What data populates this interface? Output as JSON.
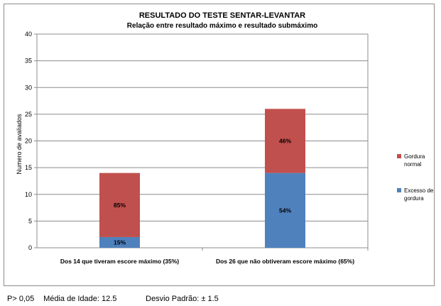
{
  "chart_data": {
    "type": "bar",
    "stacked": true,
    "title": "RESULTADO DO TESTE SENTAR-LEVANTAR",
    "subtitle": "Relação entre resultado máximo e resultado submáximo",
    "xlabel": "",
    "ylabel": "Numero de avaliados",
    "ylim": [
      0,
      40
    ],
    "yticks": [
      "0",
      "5",
      "10",
      "15",
      "20",
      "25",
      "30",
      "35",
      "40"
    ],
    "grid": true,
    "legend_position": "right",
    "categories": [
      "Dos 14 que tiveram escore máximo (35%)",
      "Dos 26 que não obtiveram escore máximo (65%)"
    ],
    "series": [
      {
        "name": "Excesso de gordura",
        "color": "#4f81bd",
        "values": [
          2,
          14
        ],
        "labels": [
          "15%",
          "54%"
        ]
      },
      {
        "name": "Gordura normal",
        "color": "#c0504d",
        "values": [
          12,
          12
        ],
        "labels": [
          "85%",
          "46%"
        ]
      }
    ]
  },
  "footer": {
    "p_value": "P> 0,05",
    "mean_age": "Média de Idade: 12.5",
    "std_dev": "Desvio Padrão: ± 1.5"
  }
}
